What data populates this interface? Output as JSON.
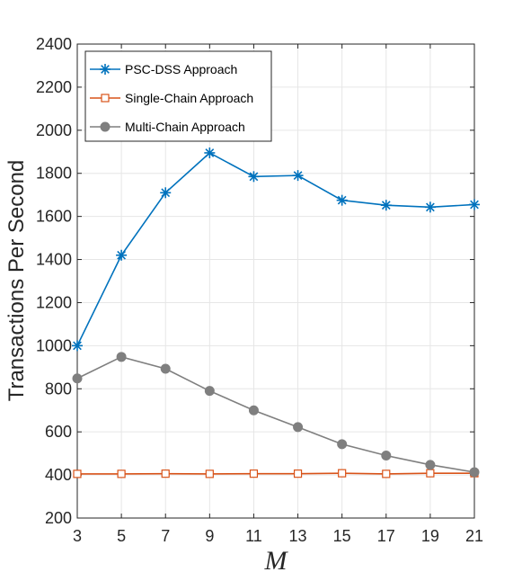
{
  "chart_data": {
    "type": "line",
    "xlabel": "M",
    "ylabel": "Transactions Per Second",
    "x": [
      3,
      5,
      7,
      9,
      11,
      13,
      15,
      17,
      19,
      21
    ],
    "xlim": [
      3,
      21
    ],
    "ylim": [
      200,
      2400
    ],
    "xticks": [
      3,
      5,
      7,
      9,
      11,
      13,
      15,
      17,
      19,
      21
    ],
    "yticks": [
      200,
      400,
      600,
      800,
      1000,
      1200,
      1400,
      1600,
      1800,
      2000,
      2200,
      2400
    ],
    "grid": true,
    "legend_position": "top-left",
    "series": [
      {
        "name": "PSC-DSS Approach",
        "color": "#0072BD",
        "marker": "asterisk",
        "values": [
          1000,
          1420,
          1710,
          1895,
          1785,
          1790,
          1675,
          1652,
          1643,
          1655
        ]
      },
      {
        "name": "Single-Chain Approach",
        "color": "#D95319",
        "marker": "square",
        "values": [
          405,
          405,
          406,
          405,
          406,
          406,
          408,
          405,
          408,
          408
        ]
      },
      {
        "name": "Multi-Chain Approach",
        "color": "#7F7F7F",
        "marker": "circle",
        "values": [
          848,
          948,
          893,
          790,
          700,
          622,
          543,
          490,
          447,
          413
        ]
      }
    ]
  }
}
